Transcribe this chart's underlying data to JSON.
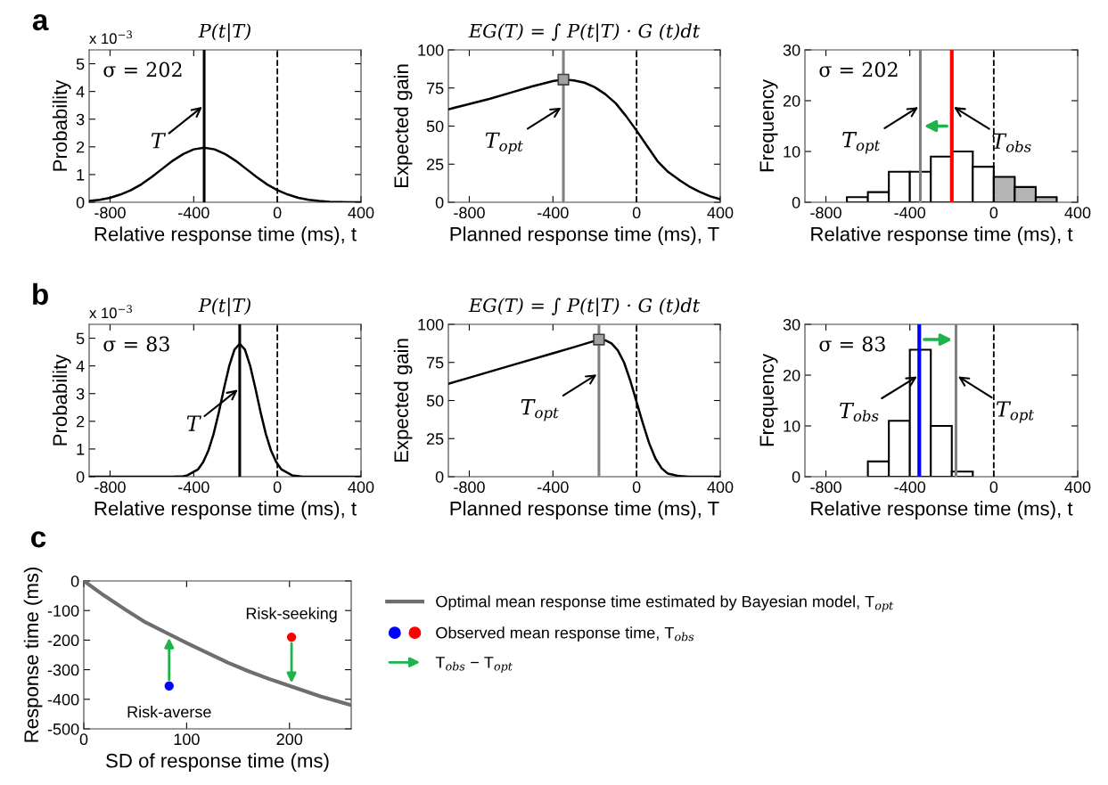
{
  "chart_data": [
    {
      "type": "line",
      "title": "P(t|T)",
      "xlabel": "Relative response time (ms), t",
      "ylabel": "Probability",
      "xlim": [
        -900,
        400
      ],
      "xticks": [
        -800,
        -400,
        0,
        400
      ],
      "ylim": [
        0,
        5.5
      ],
      "yticks": [
        0,
        1,
        2,
        3,
        4,
        5
      ],
      "series": [
        {
          "type": "line",
          "color": "#000000",
          "x": [
            -900,
            -850,
            -800,
            -750,
            -700,
            -650,
            -600,
            -550,
            -500,
            -450,
            -400,
            -350,
            -300,
            -250,
            -200,
            -150,
            -100,
            -50,
            0,
            50,
            100,
            150,
            200,
            250,
            300,
            350,
            400
          ],
          "values": [
            0.05,
            0.09,
            0.16,
            0.28,
            0.44,
            0.65,
            0.92,
            1.21,
            1.5,
            1.74,
            1.91,
            1.97,
            1.91,
            1.74,
            1.5,
            1.21,
            0.92,
            0.65,
            0.44,
            0.28,
            0.16,
            0.09,
            0.05,
            0.02,
            0.01,
            0,
            0
          ]
        }
      ],
      "ref_lines": [
        {
          "axis": "x",
          "value": -350,
          "color": "#000000",
          "line_style": "solid"
        },
        {
          "axis": "x",
          "value": 0,
          "color": "#000000",
          "line_style": "dashed"
        }
      ],
      "annotations": [
        "a",
        "x 10$^{−3}$",
        "σ = 202",
        {
          "text": "T",
          "x": -350,
          "y": 3.5
        }
      ]
    },
    {
      "type": "line",
      "title": "EG(T) = ∫ P(t|T) · G (t)dt",
      "xlabel": "Planned response time (ms), T",
      "ylabel": "Expected gain",
      "xlim": [
        -900,
        400
      ],
      "xticks": [
        -800,
        -400,
        0,
        400
      ],
      "ylim": [
        0,
        100
      ],
      "yticks": [
        0,
        25,
        50,
        75,
        100
      ],
      "series": [
        {
          "type": "line",
          "color": "#000000",
          "x": [
            -900,
            -800,
            -700,
            -600,
            -500,
            -400,
            -350,
            -300,
            -250,
            -200,
            -150,
            -100,
            -50,
            0,
            50,
            100,
            150,
            200,
            250,
            300,
            350,
            400
          ],
          "values": [
            61,
            64.5,
            68,
            72,
            76,
            79.5,
            80.5,
            80,
            78.5,
            75.5,
            71,
            65,
            56.5,
            47,
            37,
            27,
            20,
            15,
            10.5,
            7,
            4,
            2
          ]
        },
        {
          "type": "scatter",
          "marker": "square",
          "color": "#a0a0a0",
          "x": [
            -350
          ],
          "values": [
            80.5
          ]
        }
      ],
      "ref_lines": [
        {
          "axis": "x",
          "value": -350,
          "color": "#808080",
          "line_style": "solid"
        },
        {
          "axis": "x",
          "value": 0,
          "color": "#000000",
          "line_style": "dashed"
        }
      ],
      "annotations": [
        {
          "text": "T$_{opt}$",
          "x": -350,
          "y": 63
        }
      ]
    },
    {
      "type": "histogram",
      "xlabel": "Relative response time (ms), t",
      "ylabel": "Frequency",
      "xlim": [
        -900,
        400
      ],
      "xticks": [
        -800,
        -400,
        0,
        400
      ],
      "ylim": [
        0,
        30
      ],
      "yticks": [
        0,
        10,
        20,
        30
      ],
      "bins": [
        -700,
        -600,
        -500,
        -400,
        -300,
        -200,
        -100,
        0,
        100,
        200,
        300
      ],
      "values": [
        1,
        2,
        6,
        6,
        9,
        10,
        7,
        5,
        3,
        1
      ],
      "colors": [
        "#ffffff",
        "#ffffff",
        "#ffffff",
        "#ffffff",
        "#ffffff",
        "#ffffff",
        "#ffffff",
        "#b4b4b4",
        "#b4b4b4",
        "#b4b4b4"
      ],
      "ref_lines": [
        {
          "axis": "x",
          "value": -350,
          "color": "#808080",
          "line_style": "solid"
        },
        {
          "axis": "x",
          "value": -200,
          "color": "#ff0000",
          "line_style": "solid"
        },
        {
          "axis": "x",
          "value": 0,
          "color": "#000000",
          "line_style": "dashed"
        }
      ],
      "annotations": [
        "σ = 202",
        {
          "text": "T$_{opt}$",
          "x": -350,
          "y": 19
        },
        {
          "text": "T$_{obs}$",
          "x": -200,
          "y": 19
        }
      ]
    },
    {
      "type": "line",
      "title": "P(t|T)",
      "xlabel": "Relative response time (ms), t",
      "ylabel": "Probability",
      "xlim": [
        -900,
        400
      ],
      "xticks": [
        -800,
        -400,
        0,
        400
      ],
      "ylim": [
        0,
        5.5
      ],
      "yticks": [
        0,
        1,
        2,
        3,
        4,
        5
      ],
      "series": [
        {
          "type": "line",
          "color": "#000000",
          "x": [
            -900,
            -500,
            -450,
            -430,
            -380,
            -355,
            -330,
            -305,
            -280,
            -255,
            -230,
            -205,
            -180,
            -155,
            -130,
            -105,
            -80,
            -55,
            -30,
            -5,
            20,
            70,
            120,
            400
          ],
          "values": [
            0,
            0,
            0.02,
            0.05,
            0.26,
            0.52,
            0.94,
            1.54,
            2.32,
            3.19,
            4.0,
            4.59,
            4.8,
            4.59,
            4.0,
            3.19,
            2.32,
            1.54,
            0.94,
            0.52,
            0.26,
            0.05,
            0,
            0
          ]
        }
      ],
      "ref_lines": [
        {
          "axis": "x",
          "value": -180,
          "color": "#000000",
          "line_style": "solid"
        },
        {
          "axis": "x",
          "value": 0,
          "color": "#000000",
          "line_style": "dashed"
        }
      ],
      "annotations": [
        "b",
        "x 10$^{−3}$",
        "σ = 83",
        {
          "text": "T",
          "x": -180,
          "y": 3.2
        }
      ]
    },
    {
      "type": "line",
      "title": "EG(T) = ∫ P(t|T) · G (t)dt",
      "xlabel": "Planned response time (ms), T",
      "ylabel": "Expected gain",
      "xlim": [
        -900,
        400
      ],
      "xticks": [
        -800,
        -400,
        0,
        400
      ],
      "ylim": [
        0,
        100
      ],
      "yticks": [
        0,
        25,
        50,
        75,
        100
      ],
      "series": [
        {
          "type": "line",
          "color": "#000000",
          "x": [
            -900,
            -800,
            -600,
            -400,
            -300,
            -180,
            -150,
            -120,
            -90,
            -60,
            -30,
            0,
            30,
            60,
            90,
            120,
            150,
            200,
            250,
            400
          ],
          "values": [
            61,
            65,
            73,
            81,
            85,
            90,
            89.5,
            87.5,
            83,
            75,
            63,
            49,
            35,
            22,
            12,
            5.5,
            2,
            0.5,
            0,
            0
          ]
        },
        {
          "type": "scatter",
          "marker": "square",
          "color": "#a0a0a0",
          "x": [
            -180
          ],
          "values": [
            90
          ]
        }
      ],
      "ref_lines": [
        {
          "axis": "x",
          "value": -180,
          "color": "#808080",
          "line_style": "solid"
        },
        {
          "axis": "x",
          "value": 0,
          "color": "#000000",
          "line_style": "dashed"
        }
      ],
      "annotations": [
        {
          "text": "T$_{opt}$",
          "x": -180,
          "y": 68
        }
      ]
    },
    {
      "type": "histogram",
      "xlabel": "Relative response time (ms), t",
      "ylabel": "Frequency",
      "xlim": [
        -900,
        400
      ],
      "xticks": [
        -800,
        -400,
        0,
        400
      ],
      "ylim": [
        0,
        30
      ],
      "yticks": [
        0,
        10,
        20,
        30
      ],
      "bins": [
        -600,
        -500,
        -400,
        -300,
        -200,
        -100
      ],
      "values": [
        3,
        11,
        25,
        10,
        1
      ],
      "colors": [
        "#ffffff",
        "#ffffff",
        "#ffffff",
        "#ffffff",
        "#ffffff"
      ],
      "ref_lines": [
        {
          "axis": "x",
          "value": -180,
          "color": "#808080",
          "line_style": "solid"
        },
        {
          "axis": "x",
          "value": -355,
          "color": "#0000ff",
          "line_style": "solid"
        },
        {
          "axis": "x",
          "value": 0,
          "color": "#000000",
          "line_style": "dashed"
        }
      ],
      "annotations": [
        "σ = 83",
        {
          "text": "T$_{obs}$",
          "x": -355,
          "y": 20
        },
        {
          "text": "T$_{opt}$",
          "x": -180,
          "y": 20
        }
      ]
    },
    {
      "type": "line",
      "xlabel": "SD of response time (ms)",
      "ylabel": "Response time (ms)",
      "xlim": [
        0,
        260
      ],
      "xticks": [
        0,
        100,
        200
      ],
      "ylim": [
        -500,
        0
      ],
      "yticks": [
        -500,
        -400,
        -300,
        -200,
        -100,
        0
      ],
      "legend": "right",
      "series": [
        {
          "type": "line",
          "name": "Optimal mean response time estimated by Bayesian model, T$_{opt}$",
          "color": "#6e6e6e",
          "x": [
            0,
            20,
            40,
            60,
            83,
            100,
            120,
            140,
            160,
            180,
            202,
            230,
            260
          ],
          "values": [
            0,
            -50,
            -96,
            -140,
            -180,
            -210,
            -243,
            -276,
            -305,
            -331,
            -357,
            -390,
            -420
          ]
        },
        {
          "type": "scatter",
          "marker": "circle",
          "name": "Observed mean response time, T$_{obs}$",
          "colors": [
            "#0000ff",
            "#ff0000"
          ],
          "x": [
            83,
            202
          ],
          "values": [
            -355,
            -190
          ]
        },
        {
          "type": "other",
          "name": "T$_{obs}$ − T$_{opt}$",
          "color": "#1db34a"
        }
      ],
      "annotations": [
        "c",
        {
          "text": "Risk-averse",
          "x": 83,
          "y": -355
        },
        {
          "text": "Risk-seeking",
          "x": 202,
          "y": -190
        }
      ]
    }
  ]
}
